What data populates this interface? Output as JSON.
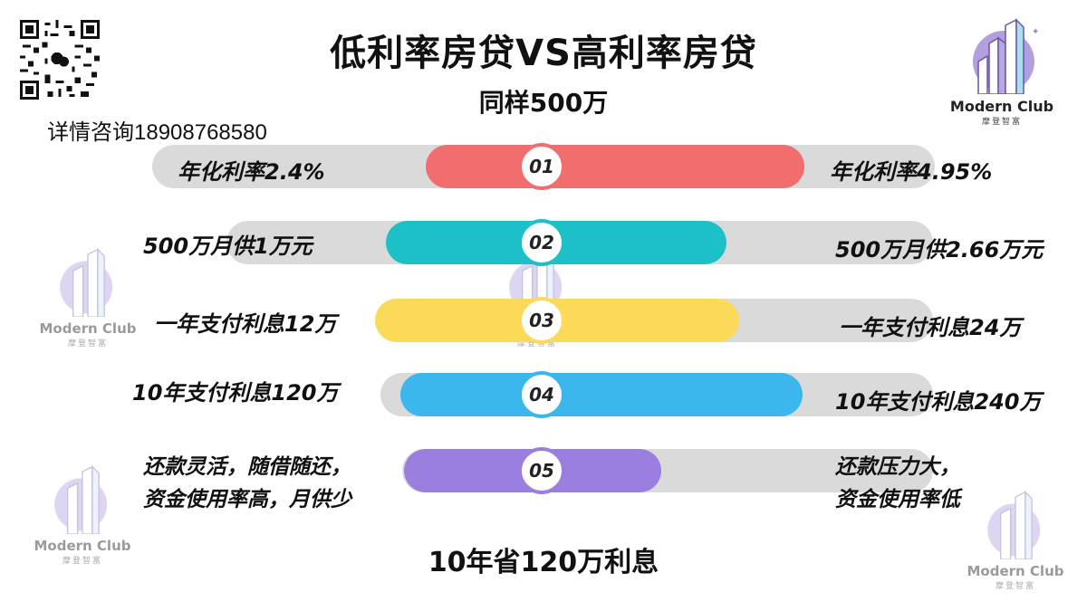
{
  "title": "低利率房贷VS高利率房贷",
  "subtitle": "同样500万",
  "contact": "详情咨询18908768580",
  "footer": "10年省120万利息",
  "logo": {
    "name": "Modern Club",
    "sub": "摩登智富"
  },
  "rows": [
    {
      "num": "01",
      "left": "年化利率2.4%",
      "right": "年化利率4.95%",
      "color": "#f26d6d"
    },
    {
      "num": "02",
      "left": "500万月供1万元",
      "right": "500万月供2.66万元",
      "color": "#1bc1c6"
    },
    {
      "num": "03",
      "left": "一年支付利息12万",
      "right": "一年支付利息24万",
      "color": "#fbda59"
    },
    {
      "num": "04",
      "left": "10年支付利息120万",
      "right": "10年支付利息240万",
      "color": "#3bb7ee"
    },
    {
      "num": "05",
      "left_line1": "还款灵活，随借随还，",
      "left_line2": "资金使用率高，月供少",
      "right_line1": "还款压力大，",
      "right_line2": "资金使用率低",
      "color": "#9a7fe0"
    }
  ]
}
